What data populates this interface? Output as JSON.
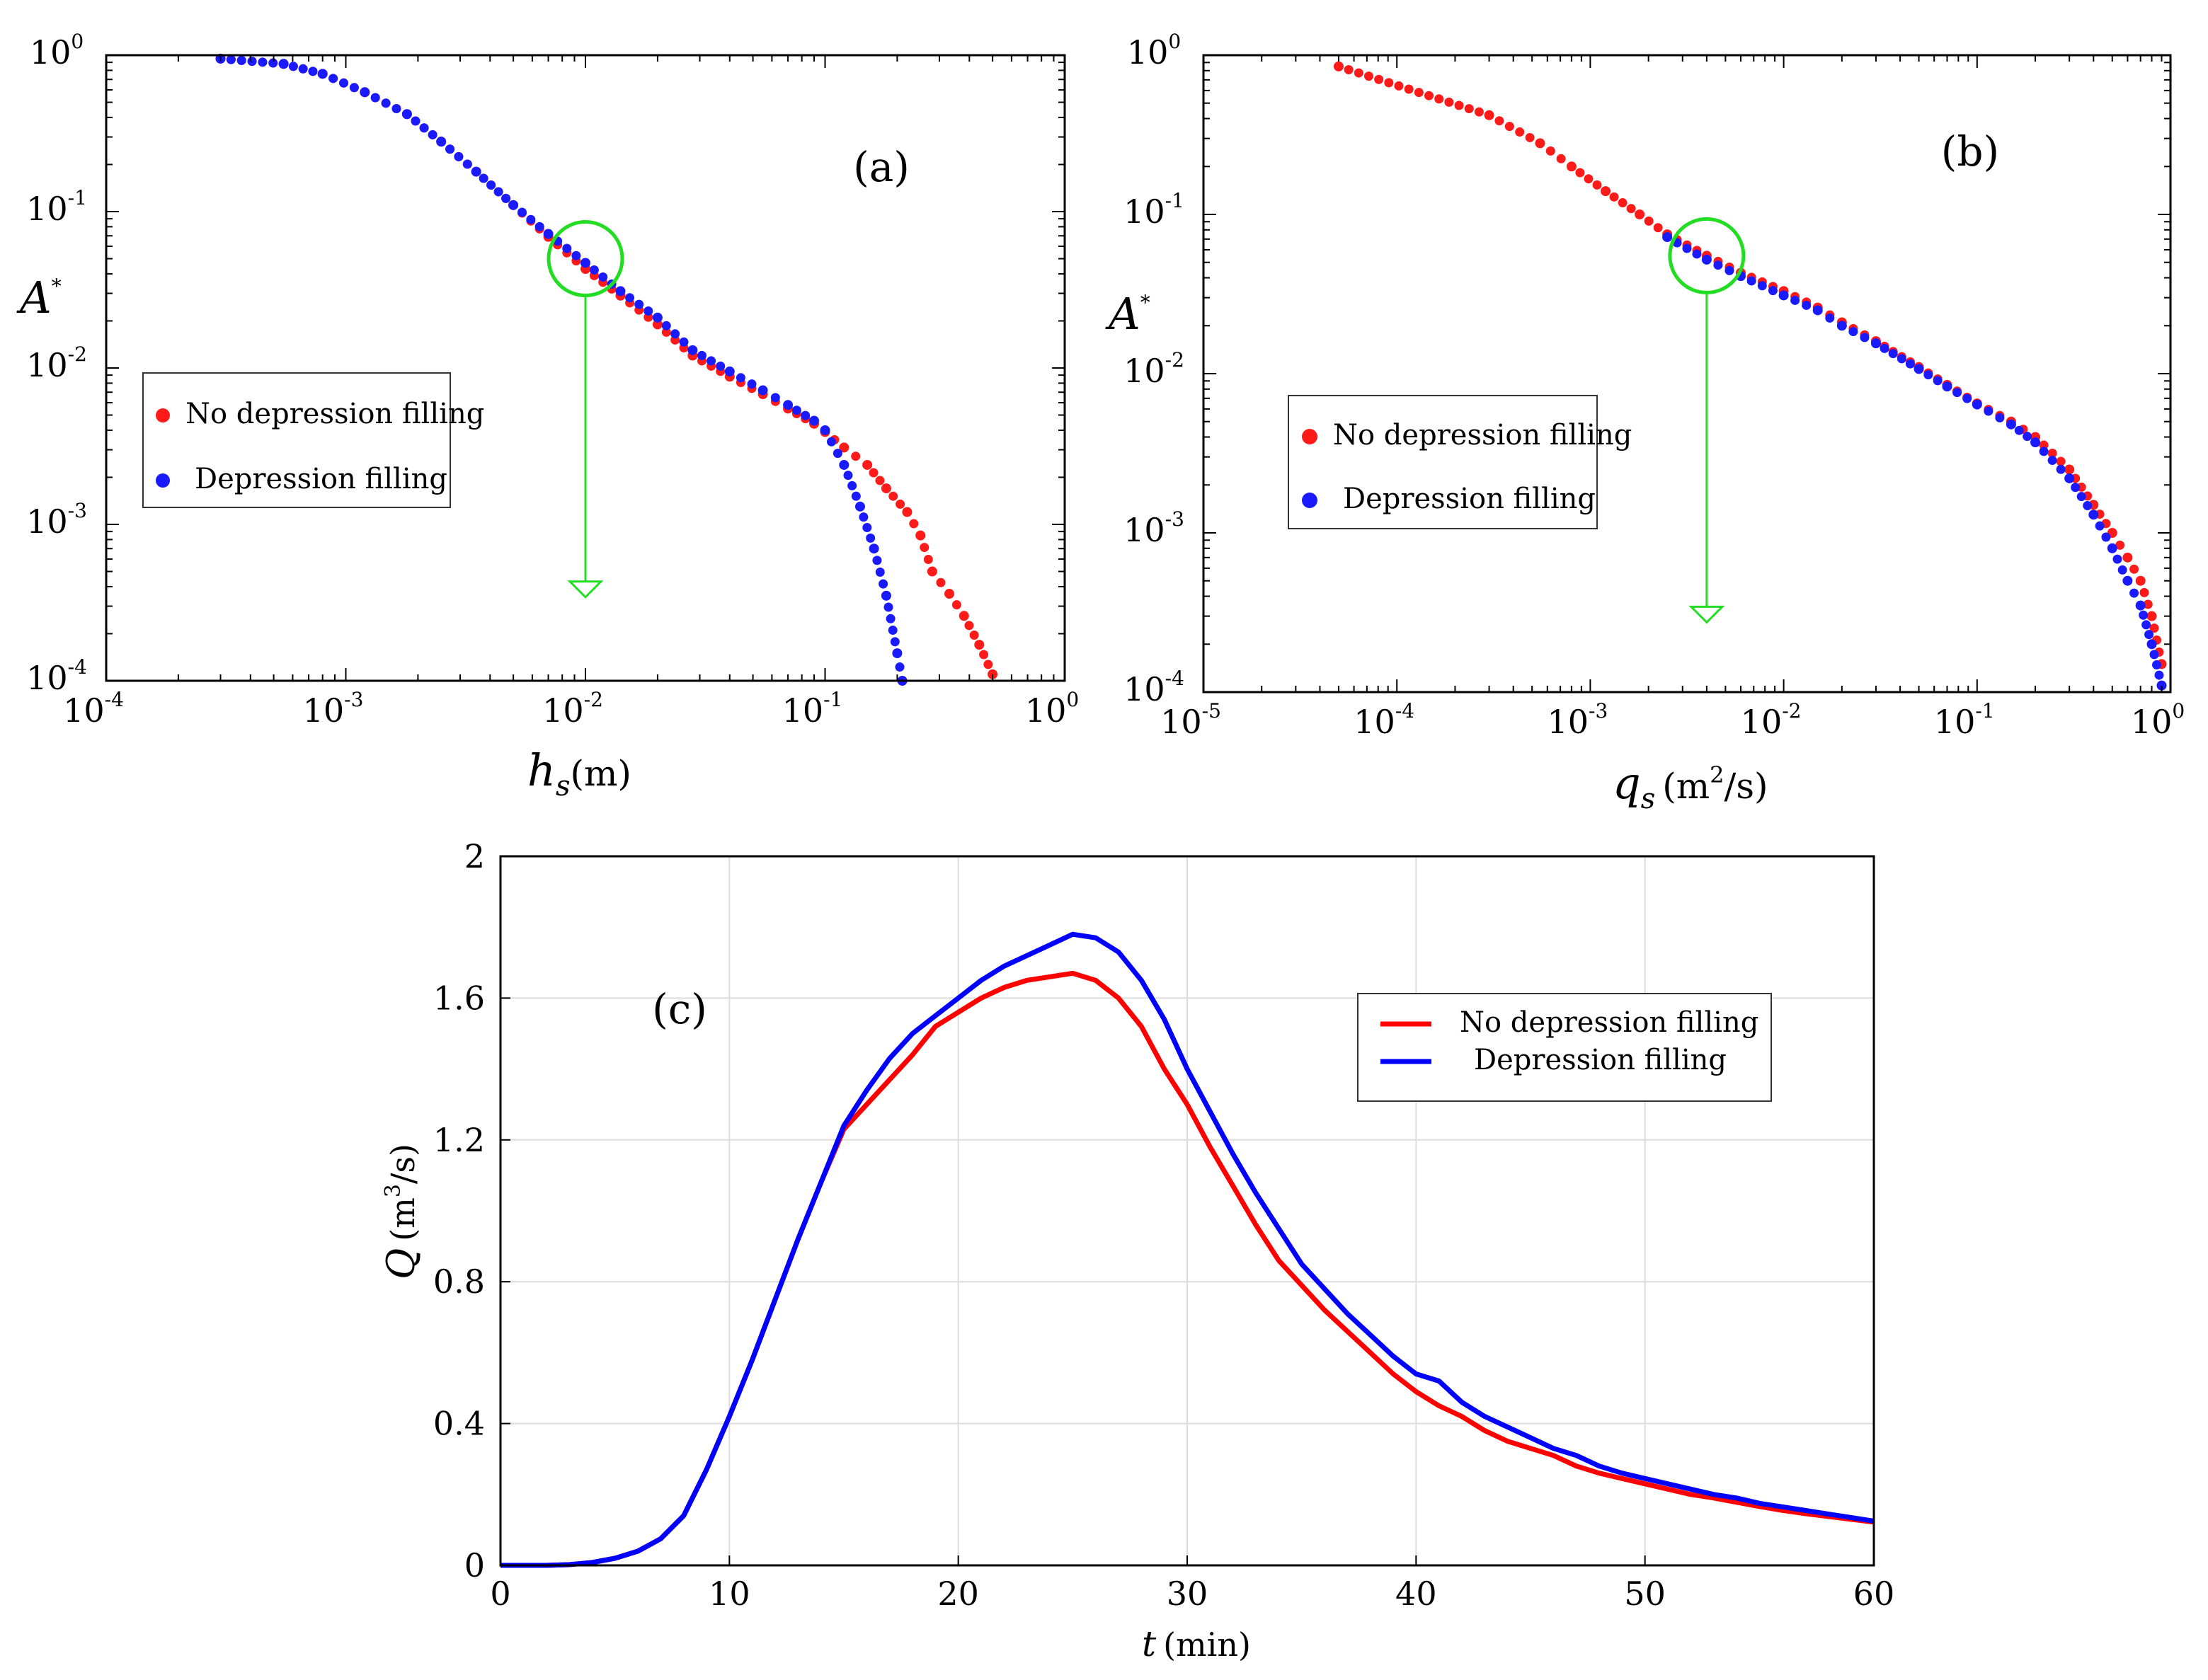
{
  "chart_data": [
    {
      "panel": "a",
      "type": "scatter",
      "panel_label": "(a)",
      "xscale": "log",
      "yscale": "log",
      "xlim": [
        0.0001,
        1
      ],
      "ylim": [
        0.0001,
        1
      ],
      "x_ticks": [
        {
          "base": "10",
          "exp": "-4"
        },
        {
          "base": "10",
          "exp": "-3"
        },
        {
          "base": "10",
          "exp": "-2"
        },
        {
          "base": "10",
          "exp": "-1"
        },
        {
          "base": "10",
          "exp": "0"
        }
      ],
      "y_ticks": [
        {
          "base": "10",
          "exp": "-4"
        },
        {
          "base": "10",
          "exp": "-3"
        },
        {
          "base": "10",
          "exp": "-2"
        },
        {
          "base": "10",
          "exp": "-1"
        },
        {
          "base": "10",
          "exp": "0"
        }
      ],
      "xlabel": {
        "symbol": "h",
        "sub": "s",
        "unit": "(m)"
      },
      "ylabel": {
        "symbol": "A",
        "sup": "*"
      },
      "legend": {
        "position": "left-middle",
        "entries": [
          "No depression filling",
          "Depression filling"
        ]
      },
      "annotation": {
        "type": "circle-arrow",
        "x": 0.01,
        "y": 0.05,
        "arrow_to_y": 0.00035
      },
      "series": [
        {
          "name": "No depression filling",
          "color": "#ff1a1a",
          "points": [
            [
              0.0003,
              0.95
            ],
            [
              0.00055,
              0.88
            ],
            [
              0.0008,
              0.76
            ],
            [
              0.0012,
              0.58
            ],
            [
              0.0018,
              0.42
            ],
            [
              0.0025,
              0.28
            ],
            [
              0.0035,
              0.18
            ],
            [
              0.005,
              0.11
            ],
            [
              0.007,
              0.069
            ],
            [
              0.01,
              0.043
            ],
            [
              0.014,
              0.029
            ],
            [
              0.02,
              0.019
            ],
            [
              0.028,
              0.012
            ],
            [
              0.04,
              0.0088
            ],
            [
              0.055,
              0.0068
            ],
            [
              0.07,
              0.0055
            ],
            [
              0.09,
              0.0044
            ],
            [
              0.1,
              0.0039
            ],
            [
              0.12,
              0.0031
            ],
            [
              0.15,
              0.0024
            ],
            [
              0.18,
              0.0017
            ],
            [
              0.22,
              0.0012
            ],
            [
              0.25,
              0.00085
            ],
            [
              0.28,
              0.0005
            ],
            [
              0.33,
              0.00036
            ],
            [
              0.38,
              0.00026
            ],
            [
              0.44,
              0.00017
            ],
            [
              0.5,
              0.00011
            ]
          ]
        },
        {
          "name": "Depression filling",
          "color": "#1a1aff",
          "points": [
            [
              0.0003,
              0.95
            ],
            [
              0.00055,
              0.88
            ],
            [
              0.0008,
              0.76
            ],
            [
              0.0012,
              0.58
            ],
            [
              0.0018,
              0.42
            ],
            [
              0.0025,
              0.28
            ],
            [
              0.0035,
              0.18
            ],
            [
              0.005,
              0.11
            ],
            [
              0.007,
              0.072
            ],
            [
              0.01,
              0.047
            ],
            [
              0.014,
              0.031
            ],
            [
              0.02,
              0.021
            ],
            [
              0.028,
              0.013
            ],
            [
              0.04,
              0.0095
            ],
            [
              0.055,
              0.0072
            ],
            [
              0.07,
              0.0058
            ],
            [
              0.09,
              0.0046
            ],
            [
              0.1,
              0.004
            ],
            [
              0.12,
              0.0024
            ],
            [
              0.14,
              0.0013
            ],
            [
              0.16,
              0.0007
            ],
            [
              0.18,
              0.00035
            ],
            [
              0.2,
              0.00015
            ],
            [
              0.21,
              0.0001
            ]
          ]
        }
      ]
    },
    {
      "panel": "b",
      "type": "scatter",
      "panel_label": "(b)",
      "xscale": "log",
      "yscale": "log",
      "xlim": [
        1e-05,
        1
      ],
      "ylim": [
        0.0001,
        1
      ],
      "x_ticks": [
        {
          "base": "10",
          "exp": "-5"
        },
        {
          "base": "10",
          "exp": "-4"
        },
        {
          "base": "10",
          "exp": "-3"
        },
        {
          "base": "10",
          "exp": "-2"
        },
        {
          "base": "10",
          "exp": "-1"
        },
        {
          "base": "10",
          "exp": "0"
        }
      ],
      "y_ticks": [
        {
          "base": "10",
          "exp": "-4"
        },
        {
          "base": "10",
          "exp": "-3"
        },
        {
          "base": "10",
          "exp": "-2"
        },
        {
          "base": "10",
          "exp": "-1"
        },
        {
          "base": "10",
          "exp": "0"
        }
      ],
      "xlabel": {
        "symbol": "q",
        "sub": "s",
        "unit": "(m",
        "unit_sup": "2",
        "unit_end": "/s)"
      },
      "ylabel": {
        "symbol": "A",
        "sup": "*"
      },
      "legend": {
        "position": "left-middle",
        "entries": [
          "No depression filling",
          "Depression filling"
        ]
      },
      "annotation": {
        "type": "circle-arrow",
        "x": 0.004,
        "y": 0.055,
        "arrow_to_y": 0.00028
      },
      "series": [
        {
          "name": "No depression filling",
          "color": "#ff1a1a",
          "points": [
            [
              5e-05,
              0.85
            ],
            [
              0.0003,
              0.42
            ],
            [
              0.00055,
              0.28
            ],
            [
              0.0008,
              0.2
            ],
            [
              0.0012,
              0.14
            ],
            [
              0.0018,
              0.1
            ],
            [
              0.0025,
              0.075
            ],
            [
              0.004,
              0.055
            ],
            [
              0.006,
              0.043
            ],
            [
              0.01,
              0.033
            ],
            [
              0.015,
              0.026
            ],
            [
              0.02,
              0.021
            ],
            [
              0.03,
              0.016
            ],
            [
              0.05,
              0.011
            ],
            [
              0.07,
              0.0085
            ],
            [
              0.1,
              0.0065
            ],
            [
              0.15,
              0.005
            ],
            [
              0.2,
              0.004
            ],
            [
              0.3,
              0.0025
            ],
            [
              0.4,
              0.0015
            ],
            [
              0.5,
              0.001
            ],
            [
              0.6,
              0.0007
            ],
            [
              0.7,
              0.0005
            ],
            [
              0.8,
              0.0003
            ],
            [
              0.9,
              0.00015
            ]
          ]
        },
        {
          "name": "Depression filling",
          "color": "#1a1aff",
          "points": [
            [
              0.0025,
              0.072
            ],
            [
              0.004,
              0.052
            ],
            [
              0.006,
              0.041
            ],
            [
              0.01,
              0.031
            ],
            [
              0.015,
              0.025
            ],
            [
              0.02,
              0.02
            ],
            [
              0.03,
              0.0155
            ],
            [
              0.05,
              0.0107
            ],
            [
              0.07,
              0.0083
            ],
            [
              0.1,
              0.0064
            ],
            [
              0.15,
              0.0048
            ],
            [
              0.2,
              0.0037
            ],
            [
              0.3,
              0.0022
            ],
            [
              0.4,
              0.0013
            ],
            [
              0.5,
              0.0008
            ],
            [
              0.6,
              0.0005
            ],
            [
              0.7,
              0.00035
            ],
            [
              0.8,
              0.0002
            ],
            [
              0.9,
              0.00011
            ]
          ]
        }
      ]
    },
    {
      "panel": "c",
      "type": "line",
      "panel_label": "(c)",
      "xlim": [
        0,
        60
      ],
      "ylim": [
        0,
        2
      ],
      "x_ticks": [
        "0",
        "10",
        "20",
        "30",
        "40",
        "50",
        "60"
      ],
      "y_ticks": [
        "0",
        "0.4",
        "0.8",
        "1.2",
        "1.6",
        "2"
      ],
      "xlabel": {
        "symbol": "t",
        "unit": "(min)"
      },
      "ylabel": {
        "symbol": "Q",
        "unit": "(m",
        "unit_sup": "3",
        "unit_end": "/s)"
      },
      "grid": true,
      "legend": {
        "position": "top-right",
        "entries": [
          "No depression filling",
          "Depression filling"
        ]
      },
      "x": [
        0,
        1,
        2,
        3,
        4,
        5,
        6,
        7,
        8,
        9,
        10,
        11,
        12,
        13,
        14,
        15,
        16,
        17,
        18,
        19,
        20,
        21,
        22,
        23,
        24,
        25,
        26,
        27,
        28,
        29,
        30,
        31,
        32,
        33,
        34,
        35,
        36,
        37,
        38,
        39,
        40,
        41,
        42,
        43,
        44,
        45,
        46,
        47,
        48,
        49,
        50,
        51,
        52,
        53,
        54,
        55,
        56,
        57,
        58,
        59,
        60
      ],
      "series": [
        {
          "name": "No depression filling",
          "color": "#ff0000",
          "values": [
            0,
            0,
            0,
            0.002,
            0.008,
            0.02,
            0.04,
            0.075,
            0.14,
            0.27,
            0.42,
            0.58,
            0.75,
            0.92,
            1.08,
            1.23,
            1.3,
            1.37,
            1.44,
            1.52,
            1.56,
            1.6,
            1.63,
            1.65,
            1.66,
            1.67,
            1.65,
            1.6,
            1.52,
            1.4,
            1.3,
            1.18,
            1.07,
            0.96,
            0.86,
            0.79,
            0.72,
            0.66,
            0.6,
            0.54,
            0.49,
            0.45,
            0.42,
            0.38,
            0.35,
            0.33,
            0.31,
            0.28,
            0.26,
            0.245,
            0.23,
            0.215,
            0.2,
            0.19,
            0.178,
            0.166,
            0.155,
            0.146,
            0.138,
            0.13,
            0.122
          ]
        },
        {
          "name": "Depression filling",
          "color": "#0000ff",
          "values": [
            0,
            0,
            0,
            0.002,
            0.008,
            0.02,
            0.04,
            0.075,
            0.14,
            0.27,
            0.42,
            0.58,
            0.75,
            0.92,
            1.08,
            1.24,
            1.34,
            1.43,
            1.5,
            1.55,
            1.6,
            1.65,
            1.69,
            1.72,
            1.75,
            1.78,
            1.77,
            1.73,
            1.65,
            1.54,
            1.4,
            1.28,
            1.16,
            1.05,
            0.95,
            0.85,
            0.78,
            0.71,
            0.65,
            0.59,
            0.54,
            0.52,
            0.46,
            0.42,
            0.39,
            0.36,
            0.33,
            0.31,
            0.28,
            0.26,
            0.245,
            0.23,
            0.215,
            0.2,
            0.19,
            0.175,
            0.165,
            0.155,
            0.145,
            0.135,
            0.125
          ]
        }
      ]
    }
  ]
}
